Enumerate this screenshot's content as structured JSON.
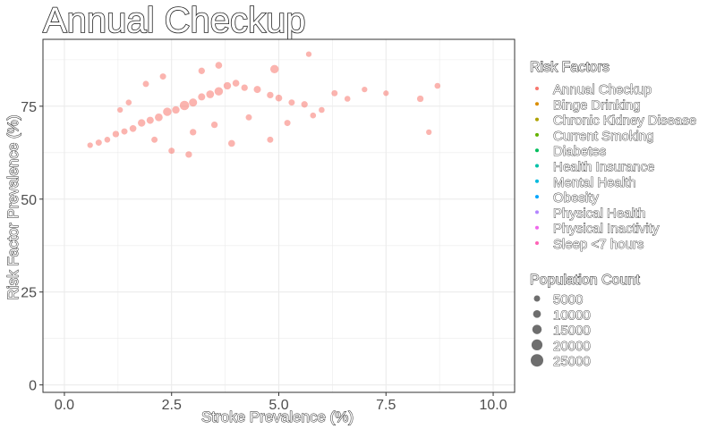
{
  "chart_data": {
    "type": "scatter",
    "title": "Annual Checkup",
    "xlabel": "Stroke Prevalence (%)",
    "ylabel": "Risk Factor Prevalence (%)",
    "xlim": [
      -0.5,
      10.5
    ],
    "ylim": [
      -2,
      93
    ],
    "x_ticks": [
      0,
      2.5,
      5,
      7.5,
      10
    ],
    "x_tick_labels": [
      "0.0",
      "2.5",
      "5.0",
      "7.5",
      "10.0"
    ],
    "y_ticks": [
      0,
      25,
      50,
      75
    ],
    "y_tick_labels": [
      "0",
      "25",
      "50",
      "75"
    ],
    "grid": true,
    "legend_placement": "right",
    "colors": {
      "points": "#F8766D",
      "panel_border": "#333333",
      "grid": "#ebebeb"
    },
    "series": [
      {
        "name": "Annual Checkup",
        "color": "#F8766D",
        "points": [
          [
            0.6,
            64.5,
            3000
          ],
          [
            0.8,
            65.2,
            5000
          ],
          [
            1.0,
            66.0,
            4000
          ],
          [
            1.2,
            67.5,
            6000
          ],
          [
            1.4,
            68.2,
            5000
          ],
          [
            1.6,
            69.0,
            7000
          ],
          [
            1.8,
            70.5,
            9000
          ],
          [
            2.0,
            71.2,
            8000
          ],
          [
            2.2,
            72.0,
            10000
          ],
          [
            2.4,
            73.5,
            12000
          ],
          [
            2.6,
            74.0,
            9000
          ],
          [
            2.8,
            75.2,
            15000
          ],
          [
            3.0,
            76.0,
            11000
          ],
          [
            3.2,
            77.5,
            8000
          ],
          [
            3.4,
            78.2,
            10000
          ],
          [
            3.6,
            79.0,
            12000
          ],
          [
            3.8,
            80.5,
            9000
          ],
          [
            4.0,
            81.2,
            7000
          ],
          [
            4.2,
            80.0,
            6000
          ],
          [
            4.5,
            79.5,
            8000
          ],
          [
            4.8,
            78.0,
            6000
          ],
          [
            5.0,
            77.2,
            7000
          ],
          [
            5.3,
            76.0,
            5000
          ],
          [
            5.6,
            75.5,
            6000
          ],
          [
            6.0,
            74.0,
            4000
          ],
          [
            6.3,
            78.5,
            5000
          ],
          [
            6.6,
            77.0,
            4000
          ],
          [
            7.0,
            79.5,
            3000
          ],
          [
            7.5,
            78.5,
            3000
          ],
          [
            8.3,
            77.0,
            6000
          ],
          [
            8.5,
            68.0,
            3000
          ],
          [
            8.7,
            80.5,
            4000
          ],
          [
            3.0,
            68.0,
            6000
          ],
          [
            3.5,
            70.0,
            6000
          ],
          [
            4.3,
            72.0,
            5000
          ],
          [
            5.2,
            70.5,
            5000
          ],
          [
            2.5,
            63.0,
            5000
          ],
          [
            2.9,
            62.0,
            6000
          ],
          [
            4.8,
            66.0,
            5000
          ],
          [
            5.8,
            72.5,
            4000
          ],
          [
            5.7,
            89.0,
            3000
          ],
          [
            4.9,
            85.0,
            12000
          ],
          [
            3.6,
            86.0,
            7000
          ],
          [
            3.2,
            84.5,
            6000
          ],
          [
            2.3,
            83.0,
            5000
          ],
          [
            1.9,
            81.0,
            5000
          ],
          [
            1.5,
            76.0,
            4000
          ],
          [
            1.3,
            74.0,
            3000
          ],
          [
            2.1,
            66.0,
            5000
          ],
          [
            3.9,
            65.0,
            7000
          ]
        ]
      }
    ],
    "legend_risk_factors": {
      "title": "Risk Factors",
      "items": [
        {
          "label": "Annual Checkup",
          "color": "#F8766D"
        },
        {
          "label": "Binge Drinking",
          "color": "#DB8E00"
        },
        {
          "label": "Chronic Kidney Disease",
          "color": "#AEA200"
        },
        {
          "label": "Current Smoking",
          "color": "#64B200"
        },
        {
          "label": "Diabetes",
          "color": "#00BD5C"
        },
        {
          "label": "Health Insurance",
          "color": "#00C1A7"
        },
        {
          "label": "Mental Health",
          "color": "#00BADE"
        },
        {
          "label": "Obesity",
          "color": "#00A6FF"
        },
        {
          "label": "Physical Health",
          "color": "#B385FF"
        },
        {
          "label": "Physical Inactivity",
          "color": "#EF67EB"
        },
        {
          "label": "Sleep <7 hours",
          "color": "#FF63B6"
        }
      ]
    },
    "legend_population": {
      "title": "Population Count",
      "items": [
        {
          "label": "5000",
          "value": 5000
        },
        {
          "label": "10000",
          "value": 10000
        },
        {
          "label": "15000",
          "value": 15000
        },
        {
          "label": "20000",
          "value": 20000
        },
        {
          "label": "25000",
          "value": 25000
        }
      ]
    }
  }
}
